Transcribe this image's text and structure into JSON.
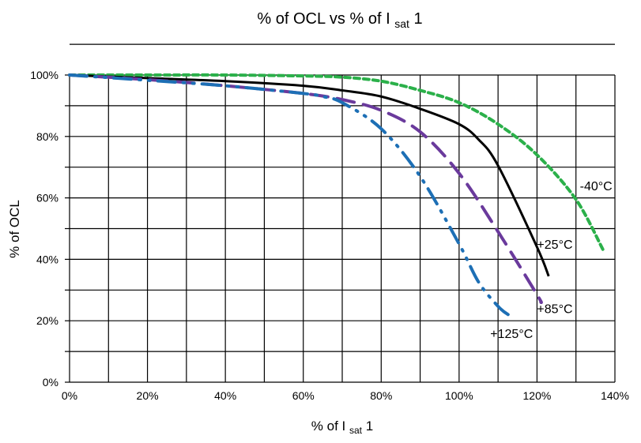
{
  "chart_data": {
    "type": "line",
    "title": "% of OCL vs % of I",
    "title_sub": "sat",
    "title_suffix": "1",
    "xlabel": "% of I",
    "xlabel_sub": "sat",
    "xlabel_suffix": "1",
    "ylabel": "% of OCL",
    "xlim": [
      0,
      140
    ],
    "ylim": [
      0,
      100
    ],
    "grid": true,
    "x_ticks": [
      0,
      20,
      40,
      60,
      80,
      100,
      120,
      140
    ],
    "x_tick_labels": [
      "0%",
      "20%",
      "40%",
      "60%",
      "80%",
      "100%",
      "120%",
      "140%"
    ],
    "y_ticks": [
      0,
      20,
      40,
      60,
      80,
      100
    ],
    "y_tick_labels": [
      "0%",
      "20%",
      "40%",
      "60%",
      "80%",
      "100%"
    ],
    "series": [
      {
        "name": "-40°C",
        "color": "#2bb04a",
        "dash": "dash",
        "label_at": [
          131,
          64
        ],
        "x": [
          0,
          20,
          40,
          60,
          70,
          80,
          90,
          100,
          110,
          120,
          130,
          137
        ],
        "y": [
          100,
          100,
          100,
          99.7,
          99.3,
          98,
          95,
          91,
          84,
          74,
          59.5,
          43
        ]
      },
      {
        "name": "+25°C",
        "color": "#000000",
        "dash": "solid",
        "label_at": [
          120,
          45
        ],
        "x": [
          0,
          20,
          40,
          60,
          70,
          80,
          90,
          100,
          105,
          110,
          120,
          123
        ],
        "y": [
          100,
          99,
          98,
          96.5,
          95,
          93,
          89,
          84,
          79,
          70.5,
          44,
          34.5
        ]
      },
      {
        "name": "+85°C",
        "color": "#6a3a9c",
        "dash": "longdash",
        "label_at": [
          120,
          24
        ],
        "x": [
          0,
          20,
          40,
          60,
          70,
          80,
          90,
          100,
          110,
          120,
          121
        ],
        "y": [
          100,
          98.5,
          96.5,
          94,
          92,
          88.5,
          81.5,
          68,
          49,
          28.5,
          26
        ]
      },
      {
        "name": "+125°C",
        "color": "#1d6fb5",
        "dash": "dashdotdot",
        "label_at": [
          108,
          16
        ],
        "x": [
          0,
          20,
          40,
          60,
          65,
          70,
          80,
          90,
          100,
          105,
          110,
          112.6
        ],
        "y": [
          100,
          98.3,
          96.5,
          94,
          93,
          91,
          82.5,
          67,
          45,
          32.6,
          24.7,
          22
        ]
      }
    ]
  }
}
